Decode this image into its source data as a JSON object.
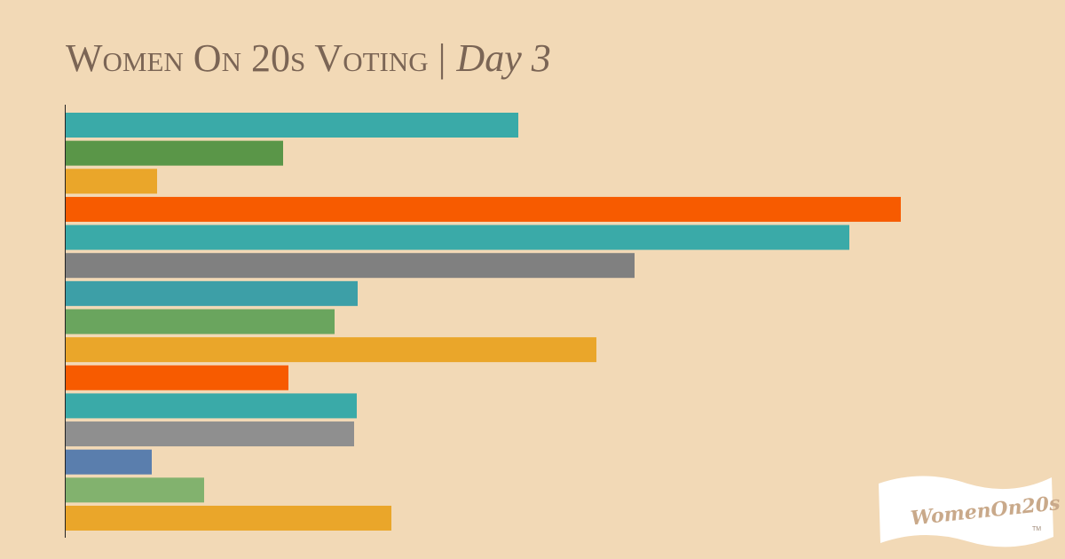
{
  "chart_data": {
    "type": "hbar",
    "title": "Women On 20s Voting |",
    "subtitle": "Day 3",
    "categories": [
      null,
      null,
      null,
      null,
      null,
      null,
      null,
      null,
      null,
      null,
      null,
      null,
      null,
      null,
      null
    ],
    "values": [
      510,
      245,
      103,
      941,
      883,
      641,
      329,
      303,
      598,
      251,
      328,
      325,
      97,
      156,
      367
    ],
    "colors": [
      "#3aaaa8",
      "#5a9648",
      "#eaa62a",
      "#f75b00",
      "#3aaaa8",
      "#808080",
      "#3d9fa7",
      "#6aa55e",
      "#eaa62a",
      "#f75b00",
      "#3aaaa8",
      "#8f8f8f",
      "#5a7ead",
      "#82b26e",
      "#eaa62a"
    ],
    "xlim": [
      0,
      1126
    ],
    "logo": {
      "text": "WomenOn20s",
      "mark": "TM"
    }
  }
}
